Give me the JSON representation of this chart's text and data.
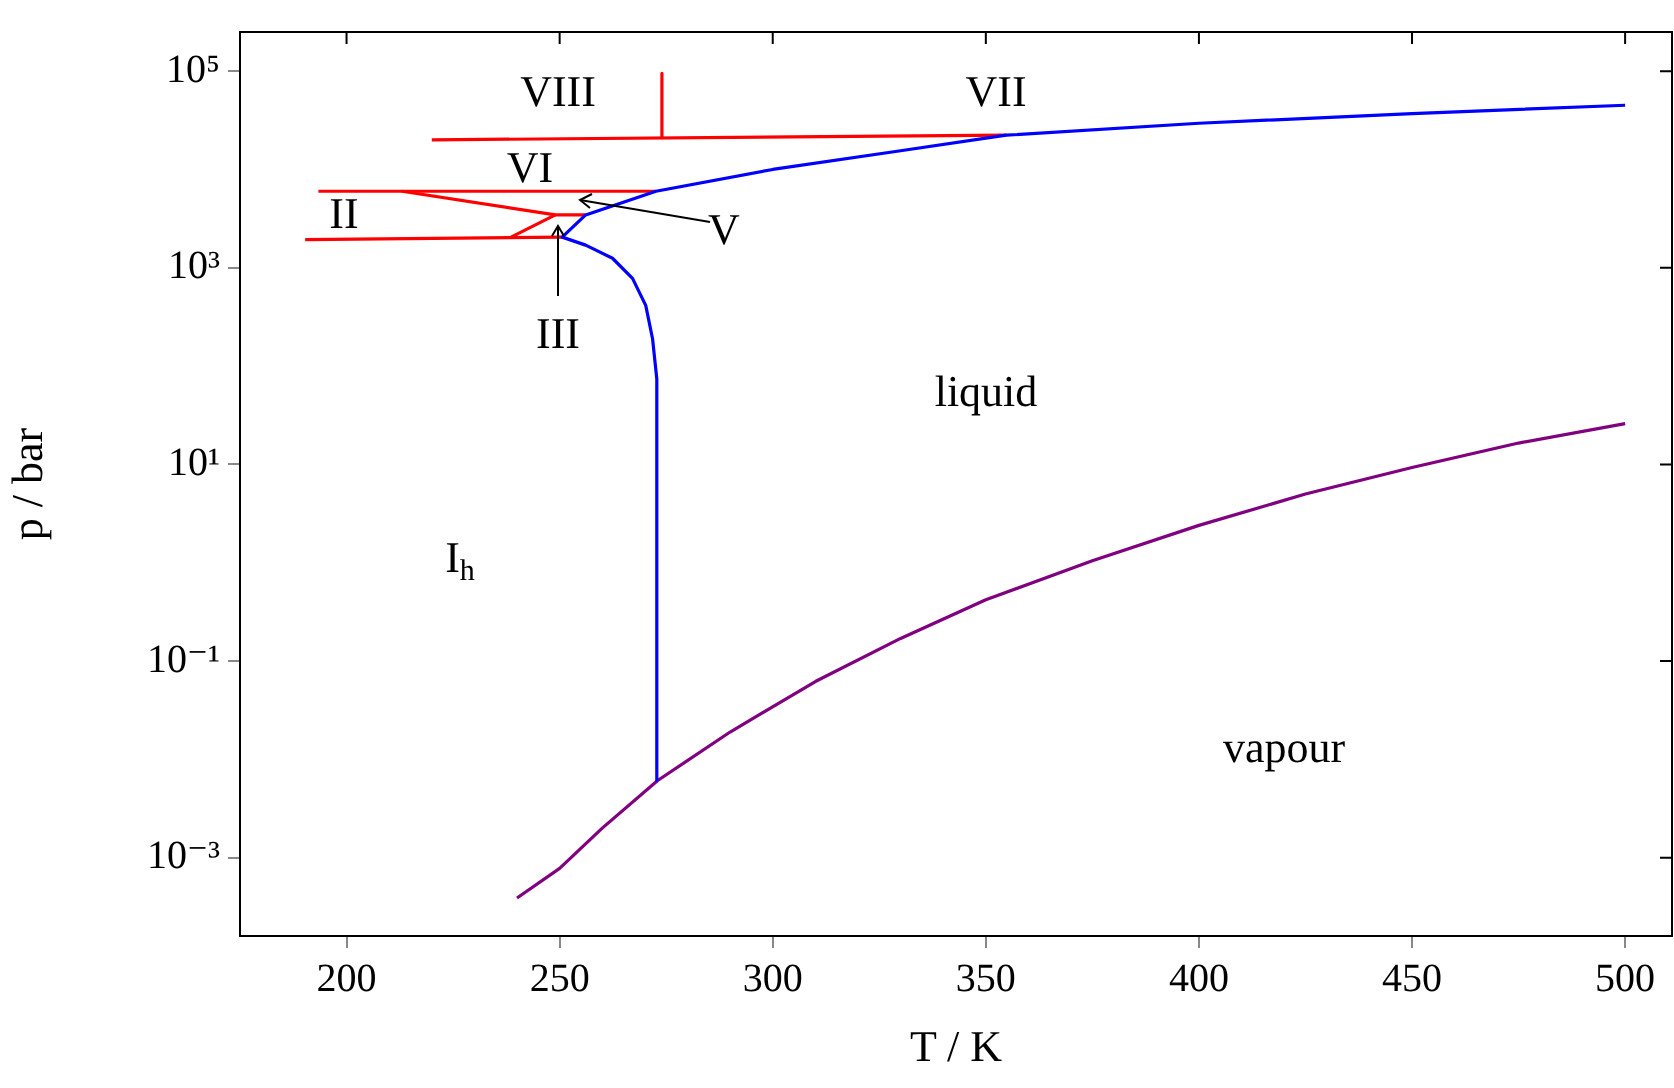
{
  "chart_data": {
    "type": "line",
    "xlabel": "T / K",
    "ylabel": "p / bar",
    "log": "y",
    "marker": "none",
    "xlim": [
      175,
      511
    ],
    "ylim": [
      0.00016,
      250000
    ],
    "xticks": [
      200,
      250,
      300,
      350,
      400,
      450,
      500
    ],
    "yticks": [
      {
        "value": 0.001,
        "label": "10⁻³"
      },
      {
        "value": 0.1,
        "label": "10⁻¹"
      },
      {
        "value": 10,
        "label": "10¹"
      },
      {
        "value": 1000,
        "label": "10³"
      },
      {
        "value": 100000,
        "label": "10⁵"
      }
    ],
    "series": [
      {
        "color": "#0000ff",
        "x": [
          273,
          272.8,
          271.8,
          270.2,
          267.1,
          262.4,
          256.1,
          250.6,
          256.1,
          272.6,
          300,
          330,
          354.8,
          400,
          450,
          500
        ],
        "values": [
          0.0061,
          74,
          190,
          415,
          780,
          1250,
          1700,
          2050,
          3450,
          6000,
          10000,
          15500,
          22300,
          29500,
          37000,
          45000
        ]
      },
      {
        "color": "#ff0000",
        "x": [
          220,
          354.8
        ],
        "values": [
          20000,
          22300
        ]
      },
      {
        "color": "#ff0000",
        "x": [
          274,
          274
        ],
        "values": [
          95000,
          21000
        ]
      },
      {
        "color": "#ff0000",
        "x": [
          193.4,
          272.6
        ],
        "values": [
          6000,
          6000
        ]
      },
      {
        "color": "#ff0000",
        "x": [
          213,
          249,
          256.1
        ],
        "values": [
          6000,
          3450,
          3450
        ]
      },
      {
        "color": "#ff0000",
        "x": [
          190.3,
          250.6
        ],
        "values": [
          1930,
          2050
        ]
      },
      {
        "color": "#ff0000",
        "x": [
          238.6,
          249
        ],
        "values": [
          2050,
          3450
        ]
      },
      {
        "color": "#800080",
        "x": [
          240,
          250,
          260,
          273,
          290,
          310,
          330,
          350,
          375,
          400,
          425,
          450,
          475,
          500
        ],
        "values": [
          0.00039,
          0.00078,
          0.002,
          0.0061,
          0.019,
          0.062,
          0.17,
          0.42,
          1.05,
          2.4,
          5,
          9.3,
          16.5,
          26
        ]
      }
    ],
    "annotations": [
      "VIII",
      "VII",
      "VI",
      "II",
      "V",
      "III",
      "liquid",
      "I$_{h}$",
      "vapour"
    ]
  }
}
